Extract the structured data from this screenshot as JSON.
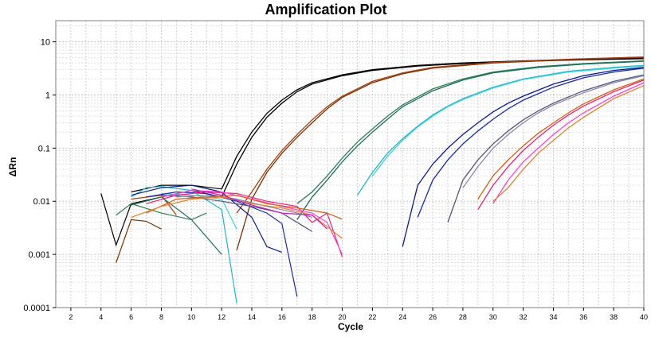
{
  "chart_data": {
    "type": "line",
    "title": "Amplification Plot",
    "xlabel": "Cycle",
    "ylabel": "ΔRn",
    "xlim": [
      1,
      40
    ],
    "ylim": [
      0.0001,
      25
    ],
    "yscale": "log",
    "grid": true,
    "xticks": [
      2,
      4,
      6,
      8,
      10,
      12,
      14,
      16,
      18,
      20,
      22,
      24,
      26,
      28,
      30,
      32,
      34,
      36,
      38,
      40
    ],
    "yticks": [
      {
        "value": 10,
        "label": "10"
      },
      {
        "value": 1,
        "label": "1"
      },
      {
        "value": 0.1,
        "label": "0.1"
      },
      {
        "value": 0.01,
        "label": "0.01"
      },
      {
        "value": 0.001,
        "label": "0.001"
      },
      {
        "value": 0.0001,
        "label": "0.0001"
      }
    ],
    "series": [
      {
        "color": "#000000",
        "baseline": [
          [
            4,
            0.014
          ],
          [
            5,
            0.0015
          ],
          [
            6,
            0.009
          ],
          [
            8,
            0.012
          ],
          [
            10,
            0.016
          ],
          [
            12,
            0.012
          ]
        ],
        "curve": [
          [
            12,
            0.012
          ],
          [
            13,
            0.05
          ],
          [
            14,
            0.16
          ],
          [
            15,
            0.38
          ],
          [
            16,
            0.7
          ],
          [
            17,
            1.15
          ],
          [
            18,
            1.6
          ],
          [
            20,
            2.3
          ],
          [
            22,
            2.9
          ],
          [
            25,
            3.5
          ],
          [
            28,
            3.9
          ],
          [
            32,
            4.3
          ],
          [
            36,
            4.6
          ],
          [
            40,
            4.8
          ]
        ]
      },
      {
        "color": "#000000",
        "baseline": [
          [
            6,
            0.015
          ],
          [
            8,
            0.02
          ],
          [
            10,
            0.02
          ],
          [
            12,
            0.017
          ]
        ],
        "curve": [
          [
            12,
            0.017
          ],
          [
            13,
            0.07
          ],
          [
            14,
            0.2
          ],
          [
            15,
            0.45
          ],
          [
            16,
            0.8
          ],
          [
            17,
            1.25
          ],
          [
            18,
            1.7
          ],
          [
            20,
            2.4
          ],
          [
            22,
            3.0
          ],
          [
            25,
            3.6
          ],
          [
            28,
            4.0
          ],
          [
            32,
            4.4
          ],
          [
            36,
            4.7
          ],
          [
            40,
            4.9
          ]
        ]
      },
      {
        "color": "#7a2e00",
        "baseline": [
          [
            5,
            0.0007
          ],
          [
            6,
            0.0045
          ],
          [
            7,
            0.0042
          ],
          [
            8,
            0.003
          ]
        ],
        "curve": [
          [
            13,
            0.0012
          ],
          [
            14,
            0.011
          ],
          [
            15,
            0.035
          ],
          [
            16,
            0.08
          ],
          [
            17,
            0.16
          ],
          [
            18,
            0.3
          ],
          [
            19,
            0.55
          ],
          [
            20,
            0.9
          ],
          [
            22,
            1.7
          ],
          [
            24,
            2.5
          ],
          [
            26,
            3.2
          ],
          [
            30,
            4.0
          ],
          [
            35,
            4.6
          ],
          [
            40,
            5.1
          ]
        ]
      },
      {
        "color": "#a14010",
        "baseline": [
          [
            6,
            0.011
          ],
          [
            8,
            0.013
          ],
          [
            9,
            0.0055
          ]
        ],
        "curve": [
          [
            13,
            0.006
          ],
          [
            14,
            0.015
          ],
          [
            15,
            0.04
          ],
          [
            16,
            0.09
          ],
          [
            17,
            0.18
          ],
          [
            18,
            0.34
          ],
          [
            19,
            0.6
          ],
          [
            20,
            0.95
          ],
          [
            22,
            1.8
          ],
          [
            24,
            2.6
          ],
          [
            26,
            3.3
          ],
          [
            30,
            4.1
          ],
          [
            35,
            4.7
          ],
          [
            40,
            5.2
          ]
        ]
      },
      {
        "color": "#2e7d4f",
        "baseline": [
          [
            5,
            0.0055
          ],
          [
            6,
            0.009
          ],
          [
            8,
            0.006
          ],
          [
            10,
            0.0045
          ],
          [
            11,
            0.006
          ]
        ],
        "curve": [
          [
            17,
            0.009
          ],
          [
            18,
            0.015
          ],
          [
            19,
            0.03
          ],
          [
            20,
            0.065
          ],
          [
            21,
            0.13
          ],
          [
            22,
            0.23
          ],
          [
            23,
            0.4
          ],
          [
            24,
            0.65
          ],
          [
            26,
            1.3
          ],
          [
            28,
            2.0
          ],
          [
            30,
            2.7
          ],
          [
            33,
            3.4
          ],
          [
            36,
            3.9
          ],
          [
            40,
            4.4
          ]
        ]
      },
      {
        "color": "#1a6e5a",
        "baseline": [
          [
            6,
            0.0085
          ],
          [
            8,
            0.012
          ],
          [
            10,
            0.0045
          ],
          [
            12,
            0.001
          ]
        ],
        "curve": [
          [
            17,
            0.0045
          ],
          [
            18,
            0.012
          ],
          [
            19,
            0.025
          ],
          [
            20,
            0.055
          ],
          [
            21,
            0.11
          ],
          [
            22,
            0.2
          ],
          [
            23,
            0.35
          ],
          [
            24,
            0.6
          ],
          [
            26,
            1.2
          ],
          [
            28,
            1.9
          ],
          [
            30,
            2.6
          ],
          [
            33,
            3.3
          ],
          [
            36,
            3.8
          ],
          [
            40,
            4.3
          ]
        ]
      },
      {
        "color": "#20b8c8",
        "baseline": [
          [
            6,
            0.012
          ],
          [
            7,
            0.018
          ],
          [
            8,
            0.019
          ],
          [
            10,
            0.016
          ],
          [
            12,
            0.007
          ],
          [
            13,
            0.00012
          ]
        ],
        "curve": [
          [
            21,
            0.013
          ],
          [
            22,
            0.035
          ],
          [
            23,
            0.08
          ],
          [
            24,
            0.15
          ],
          [
            25,
            0.26
          ],
          [
            26,
            0.42
          ],
          [
            27,
            0.62
          ],
          [
            28,
            0.85
          ],
          [
            30,
            1.4
          ],
          [
            32,
            2.0
          ],
          [
            35,
            2.8
          ],
          [
            38,
            3.3
          ],
          [
            40,
            3.6
          ]
        ]
      },
      {
        "color": "#40d0e0",
        "baseline": [
          [
            8,
            0.014
          ],
          [
            10,
            0.013
          ],
          [
            12,
            0.011
          ],
          [
            13,
            0.003
          ]
        ],
        "curve": [
          [
            22,
            0.03
          ],
          [
            23,
            0.07
          ],
          [
            24,
            0.14
          ],
          [
            25,
            0.25
          ],
          [
            26,
            0.4
          ],
          [
            27,
            0.6
          ],
          [
            28,
            0.82
          ],
          [
            30,
            1.35
          ],
          [
            32,
            1.95
          ],
          [
            35,
            2.7
          ],
          [
            38,
            3.2
          ],
          [
            40,
            3.5
          ]
        ]
      },
      {
        "color": "#0a1a8a",
        "baseline": [
          [
            6,
            0.013
          ],
          [
            8,
            0.018
          ],
          [
            10,
            0.02
          ],
          [
            12,
            0.015
          ],
          [
            14,
            0.005
          ],
          [
            15,
            0.0014
          ],
          [
            16,
            0.0011
          ]
        ],
        "curve": [
          [
            24,
            0.0014
          ],
          [
            25,
            0.02
          ],
          [
            26,
            0.05
          ],
          [
            27,
            0.1
          ],
          [
            28,
            0.18
          ],
          [
            29,
            0.3
          ],
          [
            30,
            0.48
          ],
          [
            31,
            0.7
          ],
          [
            32,
            0.95
          ],
          [
            34,
            1.6
          ],
          [
            36,
            2.3
          ],
          [
            38,
            2.9
          ],
          [
            40,
            3.3
          ]
        ]
      },
      {
        "color": "#1a2aa8",
        "baseline": [
          [
            7,
            0.012
          ],
          [
            9,
            0.015
          ],
          [
            11,
            0.014
          ],
          [
            13,
            0.01
          ],
          [
            15,
            0.006
          ],
          [
            16,
            0.0038
          ],
          [
            17,
            0.00016
          ]
        ],
        "curve": [
          [
            25,
            0.005
          ],
          [
            26,
            0.025
          ],
          [
            27,
            0.06
          ],
          [
            28,
            0.12
          ],
          [
            29,
            0.21
          ],
          [
            30,
            0.35
          ],
          [
            31,
            0.55
          ],
          [
            32,
            0.8
          ],
          [
            34,
            1.4
          ],
          [
            36,
            2.1
          ],
          [
            38,
            2.7
          ],
          [
            40,
            3.2
          ]
        ]
      },
      {
        "color": "#555577",
        "baseline": [
          [
            8,
            0.013
          ],
          [
            10,
            0.012
          ],
          [
            12,
            0.01
          ],
          [
            14,
            0.008
          ],
          [
            16,
            0.006
          ],
          [
            18,
            0.0027
          ]
        ],
        "curve": [
          [
            27,
            0.004
          ],
          [
            28,
            0.025
          ],
          [
            29,
            0.06
          ],
          [
            30,
            0.12
          ],
          [
            31,
            0.21
          ],
          [
            32,
            0.34
          ],
          [
            33,
            0.5
          ],
          [
            34,
            0.7
          ],
          [
            36,
            1.2
          ],
          [
            38,
            1.8
          ],
          [
            40,
            2.4
          ]
        ]
      },
      {
        "color": "#8888aa",
        "baseline": [
          [
            9,
            0.012
          ],
          [
            11,
            0.013
          ],
          [
            13,
            0.011
          ],
          [
            15,
            0.008
          ],
          [
            17,
            0.006
          ],
          [
            18,
            0.005
          ]
        ],
        "curve": [
          [
            28,
            0.018
          ],
          [
            29,
            0.045
          ],
          [
            30,
            0.1
          ],
          [
            31,
            0.18
          ],
          [
            32,
            0.3
          ],
          [
            33,
            0.46
          ],
          [
            34,
            0.65
          ],
          [
            36,
            1.1
          ],
          [
            38,
            1.7
          ],
          [
            40,
            2.3
          ]
        ]
      },
      {
        "color": "#e8207a",
        "baseline": [
          [
            7,
            0.009
          ],
          [
            9,
            0.013
          ],
          [
            11,
            0.015
          ],
          [
            13,
            0.014
          ],
          [
            15,
            0.01
          ],
          [
            17,
            0.008
          ],
          [
            18,
            0.004
          ],
          [
            19,
            0.006
          ],
          [
            20,
            0.0009
          ]
        ],
        "curve": [
          [
            29,
            0.007
          ],
          [
            30,
            0.02
          ],
          [
            31,
            0.045
          ],
          [
            32,
            0.09
          ],
          [
            33,
            0.16
          ],
          [
            34,
            0.27
          ],
          [
            35,
            0.42
          ],
          [
            36,
            0.62
          ],
          [
            38,
            1.15
          ],
          [
            40,
            1.9
          ]
        ]
      },
      {
        "color": "#ff40d0",
        "baseline": [
          [
            8,
            0.012
          ],
          [
            10,
            0.016
          ],
          [
            12,
            0.015
          ],
          [
            14,
            0.011
          ],
          [
            16,
            0.008
          ],
          [
            18,
            0.006
          ],
          [
            19,
            0.004
          ],
          [
            20,
            0.001
          ]
        ],
        "curve": [
          [
            30,
            0.009
          ],
          [
            31,
            0.025
          ],
          [
            32,
            0.055
          ],
          [
            33,
            0.1
          ],
          [
            34,
            0.18
          ],
          [
            35,
            0.3
          ],
          [
            36,
            0.46
          ],
          [
            38,
            0.95
          ],
          [
            40,
            1.7
          ]
        ]
      },
      {
        "color": "#d06010",
        "baseline": [
          [
            7,
            0.006
          ],
          [
            9,
            0.011
          ],
          [
            11,
            0.012
          ],
          [
            13,
            0.013
          ],
          [
            15,
            0.009
          ],
          [
            17,
            0.0075
          ],
          [
            19,
            0.006
          ],
          [
            20,
            0.0046
          ]
        ],
        "curve": [
          [
            29,
            0.011
          ],
          [
            30,
            0.03
          ],
          [
            31,
            0.06
          ],
          [
            32,
            0.11
          ],
          [
            33,
            0.19
          ],
          [
            34,
            0.3
          ],
          [
            35,
            0.46
          ],
          [
            36,
            0.68
          ],
          [
            38,
            1.25
          ],
          [
            40,
            2.0
          ]
        ]
      },
      {
        "color": "#e0802a",
        "baseline": [
          [
            6,
            0.005
          ],
          [
            8,
            0.008
          ],
          [
            10,
            0.011
          ],
          [
            12,
            0.012
          ],
          [
            14,
            0.009
          ],
          [
            16,
            0.0075
          ],
          [
            18,
            0.0055
          ],
          [
            20,
            0.002
          ]
        ],
        "curve": [
          [
            30,
            0.01
          ],
          [
            31,
            0.018
          ],
          [
            32,
            0.04
          ],
          [
            33,
            0.08
          ],
          [
            34,
            0.14
          ],
          [
            35,
            0.24
          ],
          [
            36,
            0.38
          ],
          [
            38,
            0.85
          ],
          [
            40,
            1.5
          ]
        ]
      },
      {
        "color": "#c020c0",
        "baseline": [
          [
            10,
            0.017
          ],
          [
            12,
            0.013
          ],
          [
            14,
            0.0085
          ],
          [
            16,
            0.006
          ],
          [
            18,
            0.0055
          ],
          [
            19,
            0.003
          ]
        ],
        "curve": []
      }
    ]
  }
}
